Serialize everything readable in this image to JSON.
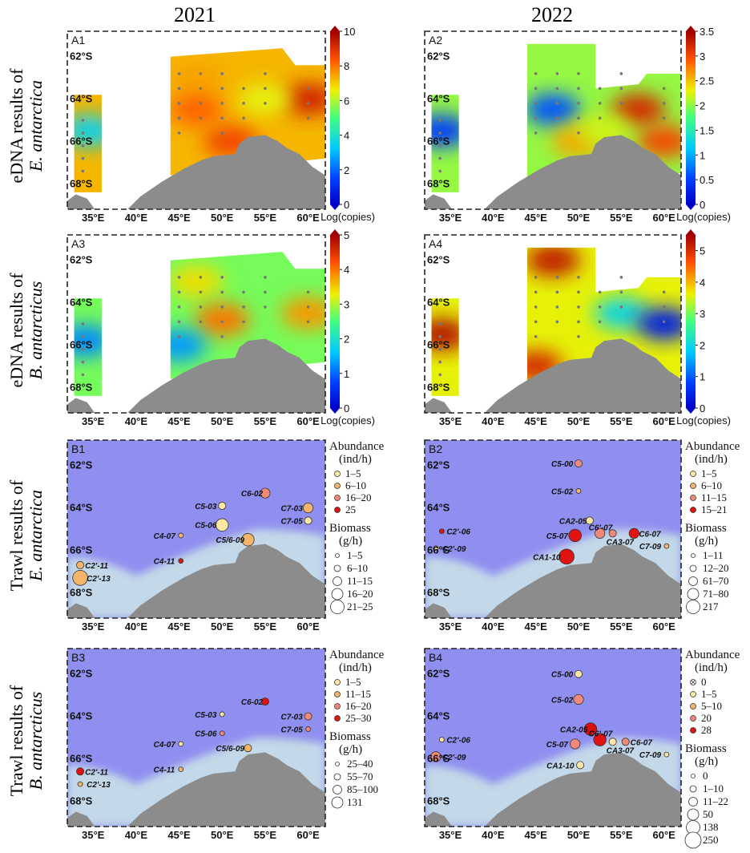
{
  "colors": {
    "ocean": "#8f8ff0",
    "ocean_light": "#c3d8e8",
    "land": "#8c8c8c",
    "dot": "#777777"
  },
  "years": {
    "left": "2021",
    "right": "2022"
  },
  "row_labels": [
    {
      "line1": "eDNA results of",
      "line2": "E. antarctica"
    },
    {
      "line1": "eDNA results of",
      "line2": "B. antarcticus"
    },
    {
      "line1": "Trawl results of",
      "line2": "E. antarctica"
    },
    {
      "line1": "Trawl results of",
      "line2": "B. antarcticus"
    }
  ],
  "axes": {
    "x_ticks": [
      "35°E",
      "40°E",
      "45°E",
      "50°E",
      "55°E",
      "60°E"
    ],
    "y_ticks": [
      "62°S",
      "64°S",
      "66°S",
      "68°S"
    ],
    "lon_range": [
      32,
      62
    ],
    "lat_range": [
      -69.2,
      -60.8
    ]
  },
  "chart_data": [
    {
      "id": "A1",
      "type": "heatmap",
      "title": "A1",
      "colorbar": {
        "min": 0,
        "max": 10,
        "ticks": [
          0,
          2,
          4,
          6,
          8,
          10
        ],
        "label": "Log(copies)"
      },
      "patches": [
        {
          "lon": 34.5,
          "lat": -65.5,
          "v": 3.5
        },
        {
          "lon": 47,
          "lat": -63,
          "v": 7.5
        },
        {
          "lon": 47,
          "lat": -64.5,
          "v": 8.2
        },
        {
          "lon": 51,
          "lat": -66,
          "v": 8.6
        },
        {
          "lon": 60,
          "lat": -64,
          "v": 9.2
        },
        {
          "lon": 55,
          "lat": -64,
          "v": 6.5
        }
      ]
    },
    {
      "id": "A2",
      "type": "heatmap",
      "title": "A2",
      "colorbar": {
        "min": 0,
        "max": 3.5,
        "ticks": [
          0,
          0.5,
          1,
          1.5,
          2,
          2.5,
          3,
          3.5
        ],
        "label": "Log(copies)"
      },
      "patches": [
        {
          "lon": 34,
          "lat": -65.5,
          "v": 0.5
        },
        {
          "lon": 47,
          "lat": -64.5,
          "v": 0.6
        },
        {
          "lon": 50,
          "lat": -66,
          "v": 2.6
        },
        {
          "lon": 57,
          "lat": -64.5,
          "v": 3.2
        },
        {
          "lon": 60,
          "lat": -66,
          "v": 3.0
        },
        {
          "lon": 53,
          "lat": -65.5,
          "v": 2.2
        }
      ]
    },
    {
      "id": "A3",
      "type": "heatmap",
      "title": "A3",
      "colorbar": {
        "min": 0,
        "max": 5,
        "ticks": [
          0,
          1,
          2,
          3,
          4,
          5
        ],
        "label": "Log(copies)"
      },
      "patches": [
        {
          "lon": 34,
          "lat": -65.8,
          "v": 1.2
        },
        {
          "lon": 47,
          "lat": -63,
          "v": 3.4
        },
        {
          "lon": 50,
          "lat": -64.8,
          "v": 4.0
        },
        {
          "lon": 45,
          "lat": -66,
          "v": 1.3
        },
        {
          "lon": 60,
          "lat": -64.5,
          "v": 3.8
        }
      ]
    },
    {
      "id": "A4",
      "type": "heatmap",
      "title": "A4",
      "colorbar": {
        "min": 0,
        "max": 5.5,
        "ticks": [
          0,
          1,
          2,
          3,
          4,
          5
        ],
        "label": "Log(copies)"
      },
      "patches": [
        {
          "lon": 34,
          "lat": -65.5,
          "v": 5.3
        },
        {
          "lon": 47,
          "lat": -62,
          "v": 5.2
        },
        {
          "lon": 55,
          "lat": -64.5,
          "v": 2.0
        },
        {
          "lon": 60,
          "lat": -65,
          "v": 0.4
        },
        {
          "lon": 45,
          "lat": -67,
          "v": 5.0
        }
      ]
    },
    {
      "id": "B1",
      "type": "scatter",
      "title": "B1",
      "legend": {
        "abundance_title": "Abundance",
        "abundance_unit": "(ind/h)",
        "abundance": [
          "1–5",
          "6–10",
          "16–20",
          "25"
        ],
        "biomass_title": "Biomass",
        "biomass_unit": "(g/h)",
        "biomass": [
          "1–5",
          "6–10",
          "11–15",
          "16–20",
          "21–25"
        ]
      },
      "stations": [
        {
          "name": "C6-02",
          "lon": 55,
          "lat": -63.3,
          "a": 2,
          "b": 2,
          "lx": -30,
          "ly": 0
        },
        {
          "name": "C5-03",
          "lon": 50,
          "lat": -63.9,
          "a": 0,
          "b": 1,
          "lx": -34,
          "ly": 0
        },
        {
          "name": "C7-03",
          "lon": 60,
          "lat": -64,
          "a": 1,
          "b": 2,
          "lx": -34,
          "ly": 0
        },
        {
          "name": "C7-05",
          "lon": 60,
          "lat": -64.6,
          "a": 0,
          "b": 1,
          "lx": -34,
          "ly": 0
        },
        {
          "name": "C5-06",
          "lon": 50,
          "lat": -64.8,
          "a": 0,
          "b": 3,
          "lx": -34,
          "ly": 0
        },
        {
          "name": "C4-07",
          "lon": 45.2,
          "lat": -65.3,
          "a": 1,
          "b": 0,
          "lx": -34,
          "ly": 0
        },
        {
          "name": "C5/6-09",
          "lon": 53,
          "lat": -65.5,
          "a": 1,
          "b": 3,
          "lx": -40,
          "ly": 0
        },
        {
          "name": "C4-11",
          "lon": 45.2,
          "lat": -66.5,
          "a": 3,
          "b": 0,
          "lx": -34,
          "ly": 0
        },
        {
          "name": "C2'-11",
          "lon": 33.5,
          "lat": -66.7,
          "a": 1,
          "b": 1,
          "lx": 6,
          "ly": 0
        },
        {
          "name": "C2'-13",
          "lon": 33.5,
          "lat": -67.3,
          "a": 1,
          "b": 4,
          "lx": 8,
          "ly": 0
        }
      ]
    },
    {
      "id": "B2",
      "type": "scatter",
      "title": "B2",
      "legend": {
        "abundance_title": "Abundance",
        "abundance_unit": "(ind/h)",
        "abundance": [
          "1–5",
          "6–10",
          "11–15",
          "15–21"
        ],
        "biomass_title": "Biomass",
        "biomass_unit": "(g/h)",
        "biomass": [
          "1–11",
          "12–20",
          "61–70",
          "71–80",
          "217"
        ]
      },
      "stations": [
        {
          "name": "C5-00",
          "lon": 50,
          "lat": -61.9,
          "a": 2,
          "b": 1,
          "lx": -34,
          "ly": 0
        },
        {
          "name": "C5-02",
          "lon": 50,
          "lat": -63.2,
          "a": 1,
          "b": 0,
          "lx": -34,
          "ly": 0
        },
        {
          "name": "CA2-05",
          "lon": 51.3,
          "lat": -64.6,
          "a": 0,
          "b": 1,
          "lx": -38,
          "ly": 0
        },
        {
          "name": "C6'-07",
          "lon": 52.5,
          "lat": -65.2,
          "a": 2,
          "b": 2,
          "lx": -14,
          "ly": -8
        },
        {
          "name": "C6-07",
          "lon": 56.5,
          "lat": -65.2,
          "a": 3,
          "b": 2,
          "lx": 6,
          "ly": 0
        },
        {
          "name": "CA3-07",
          "lon": 54,
          "lat": -65.2,
          "a": 2,
          "b": 1,
          "lx": -8,
          "ly": 10
        },
        {
          "name": "C5-07",
          "lon": 49.6,
          "lat": -65.3,
          "a": 3,
          "b": 3,
          "lx": -36,
          "ly": 0
        },
        {
          "name": "C7-09",
          "lon": 60.3,
          "lat": -65.8,
          "a": 1,
          "b": 0,
          "lx": -34,
          "ly": 0
        },
        {
          "name": "CA1-10",
          "lon": 48.6,
          "lat": -66.3,
          "a": 3,
          "b": 4,
          "lx": -42,
          "ly": 0
        },
        {
          "name": "C2'-06",
          "lon": 34,
          "lat": -65.1,
          "a": 3,
          "b": 0,
          "lx": 6,
          "ly": 0
        },
        {
          "name": "C2'-09",
          "lon": 33.3,
          "lat": -65.9,
          "a": 0,
          "b": 0,
          "lx": 8,
          "ly": 0
        }
      ]
    },
    {
      "id": "B3",
      "type": "scatter",
      "title": "B3",
      "legend": {
        "abundance_title": "Abundance",
        "abundance_unit": "(ind/h)",
        "abundance": [
          "1–5",
          "11–15",
          "16–20",
          "25–30"
        ],
        "biomass_title": "Biomass",
        "biomass_unit": "(g/h)",
        "biomass": [
          "25–40",
          "55–70",
          "85–100",
          "131"
        ]
      },
      "stations": [
        {
          "name": "C6-02",
          "lon": 55,
          "lat": -63.3,
          "a": 3,
          "b": 1,
          "lx": -30,
          "ly": 0
        },
        {
          "name": "C5-03",
          "lon": 50,
          "lat": -63.9,
          "a": 0,
          "b": 0,
          "lx": -34,
          "ly": 0
        },
        {
          "name": "C7-03",
          "lon": 60,
          "lat": -64,
          "a": 2,
          "b": 1,
          "lx": -34,
          "ly": 0
        },
        {
          "name": "C5-06",
          "lon": 50,
          "lat": -64.8,
          "a": 2,
          "b": 0,
          "lx": -34,
          "ly": 0
        },
        {
          "name": "C7-05",
          "lon": 60,
          "lat": -64.6,
          "a": 2,
          "b": 0,
          "lx": -34,
          "ly": 0
        },
        {
          "name": "C4-07",
          "lon": 45.2,
          "lat": -65.3,
          "a": 0,
          "b": 0,
          "lx": -34,
          "ly": 0
        },
        {
          "name": "C5/6-09",
          "lon": 53,
          "lat": -65.5,
          "a": 1,
          "b": 1,
          "lx": -40,
          "ly": 0
        },
        {
          "name": "C4-11",
          "lon": 45.2,
          "lat": -66.5,
          "a": 1,
          "b": 0,
          "lx": -34,
          "ly": 0
        },
        {
          "name": "C2'-11",
          "lon": 33.5,
          "lat": -66.6,
          "a": 3,
          "b": 1,
          "lx": 6,
          "ly": 0
        },
        {
          "name": "C2'-13",
          "lon": 33.5,
          "lat": -67.2,
          "a": 1,
          "b": 0,
          "lx": 8,
          "ly": 0
        }
      ]
    },
    {
      "id": "B4",
      "type": "scatter",
      "title": "B4",
      "legend": {
        "abundance_title": "Abundance",
        "abundance_unit": "(ind/h)",
        "abundance": [
          "0",
          "1–5",
          "5–10",
          "20",
          "28"
        ],
        "biomass_title": "Biomass",
        "biomass_unit": "(g/h)",
        "biomass": [
          "0",
          "1–10",
          "11–22",
          "50",
          "138",
          "250"
        ]
      },
      "stations": [
        {
          "name": "C5-00",
          "lon": 50,
          "lat": -62,
          "a": 0,
          "b": 1,
          "lx": -34,
          "ly": 0
        },
        {
          "name": "C5-02",
          "lon": 50,
          "lat": -63.2,
          "a": 2,
          "b": 2,
          "lx": -34,
          "ly": 0
        },
        {
          "name": "CA2-05",
          "lon": 51.4,
          "lat": -64.6,
          "a": 4,
          "b": 3,
          "lx": -38,
          "ly": 0
        },
        {
          "name": "C6'-07",
          "lon": 52.5,
          "lat": -65.1,
          "a": 3,
          "b": 3,
          "lx": -14,
          "ly": -8
        },
        {
          "name": "C6-07",
          "lon": 55.5,
          "lat": -65.2,
          "a": 2,
          "b": 1,
          "lx": 6,
          "ly": 0
        },
        {
          "name": "CA3-07",
          "lon": 54,
          "lat": -65.2,
          "a": 0,
          "b": 1,
          "lx": -8,
          "ly": 10
        },
        {
          "name": "C5-07",
          "lon": 49.6,
          "lat": -65.3,
          "a": 2,
          "b": 2,
          "lx": -36,
          "ly": 0
        },
        {
          "name": "C7-09",
          "lon": 60.3,
          "lat": -65.8,
          "a": 0,
          "b": 0,
          "lx": -34,
          "ly": 0
        },
        {
          "name": "CA1-10",
          "lon": 50.2,
          "lat": -66.3,
          "a": 0,
          "b": 1,
          "lx": -42,
          "ly": 0
        },
        {
          "name": "C2'-06",
          "lon": 34,
          "lat": -65.1,
          "a": 0,
          "b": 0,
          "lx": 6,
          "ly": 0
        },
        {
          "name": "C2'-09",
          "lon": 33.3,
          "lat": -65.9,
          "a": 2,
          "b": 2,
          "lx": 8,
          "ly": 0
        }
      ]
    }
  ]
}
